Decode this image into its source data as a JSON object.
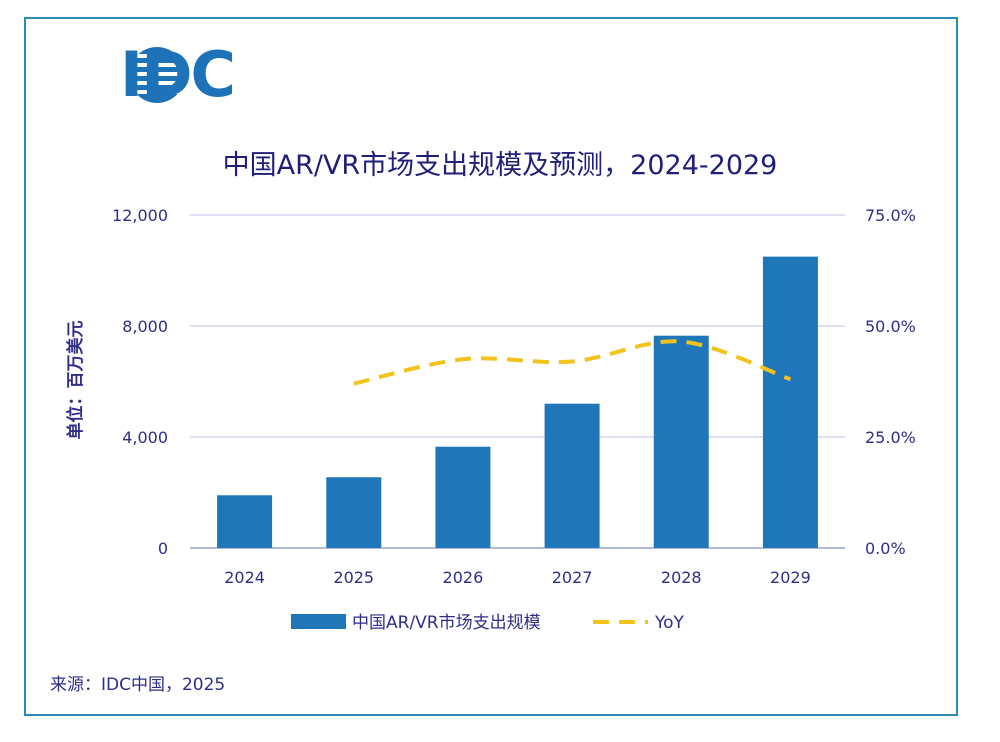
{
  "logo": {
    "text": "IDC",
    "icon": "idc-globe-icon"
  },
  "colors": {
    "bar": "#1f77b9",
    "line": "#f2c21d",
    "grid": "#c8cdea",
    "text": "#2e2e8a",
    "border": "#2b8bb5"
  },
  "source": "来源：IDC中国，2025",
  "chart_data": {
    "type": "bar",
    "title": "中国AR/VR市场支出规模及预测，2024-2029",
    "ylabel": "单位：百万美元",
    "categories": [
      "2024",
      "2025",
      "2026",
      "2027",
      "2028",
      "2029"
    ],
    "series": [
      {
        "name": "中国AR/VR市场支出规模",
        "type": "bar",
        "axis": "left",
        "values": [
          1900,
          2550,
          3650,
          5200,
          7650,
          10500
        ]
      },
      {
        "name": "YoY",
        "type": "line",
        "style": "dashed",
        "axis": "right",
        "values": [
          null,
          37.0,
          42.5,
          42.0,
          46.5,
          38.0
        ]
      }
    ],
    "ylim": [
      0,
      12000
    ],
    "y_ticks": [
      "0",
      "4,000",
      "8,000",
      "12,000"
    ],
    "y_tick_values": [
      0,
      4000,
      8000,
      12000
    ],
    "y2lim": [
      0,
      75
    ],
    "y2_ticks": [
      "0.0%",
      "25.0%",
      "50.0%",
      "75.0%"
    ],
    "y2_tick_values": [
      0,
      25,
      50,
      75
    ],
    "legend": [
      "中国AR/VR市场支出规模",
      "YoY"
    ],
    "legend_position": "bottom",
    "grid": true
  }
}
